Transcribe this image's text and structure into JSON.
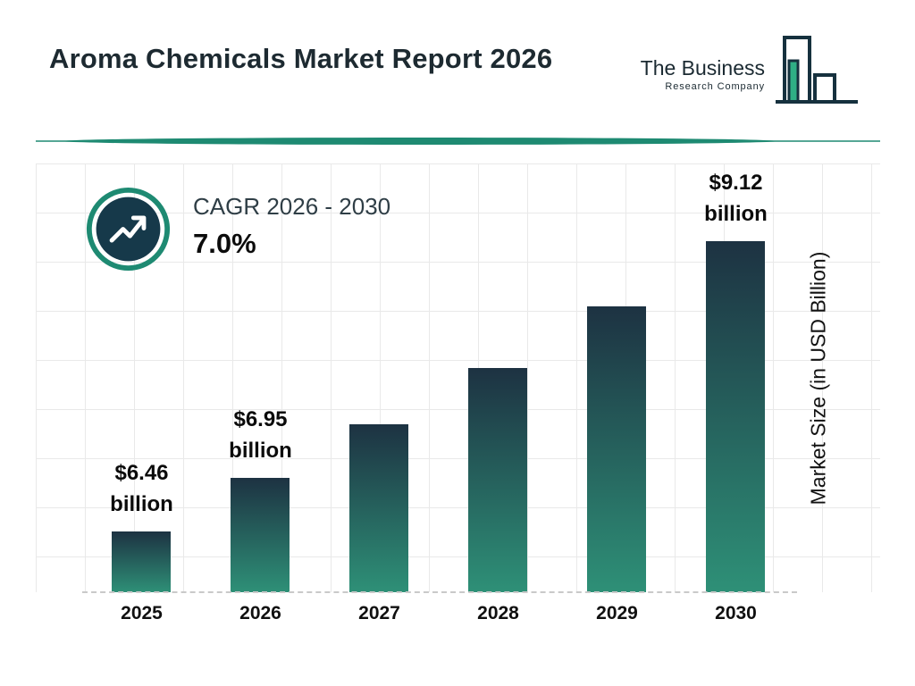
{
  "header": {
    "title": "Aroma Chemicals Market Report 2026"
  },
  "logo": {
    "line1": "The Business",
    "line2": "Research Company"
  },
  "cagr": {
    "label": "CAGR 2026 - 2030",
    "value": "7.0%"
  },
  "chart_data": {
    "type": "bar",
    "title": "Aroma Chemicals Market Report 2026",
    "categories": [
      "2025",
      "2026",
      "2027",
      "2028",
      "2029",
      "2030"
    ],
    "values": [
      6.46,
      6.95,
      7.44,
      7.96,
      8.52,
      9.12
    ],
    "labels": [
      "$6.46 billion",
      "$6.95 billion",
      "",
      "",
      "",
      "$9.12 billion"
    ],
    "xlabel": "",
    "ylabel": "Market Size (in USD Billion)",
    "ylim": [
      5.9,
      9.6
    ],
    "grid": true,
    "legend": "none",
    "cagr_percent": 7.0,
    "cagr_period": "2026 - 2030",
    "colors": {
      "navy": "#16313e",
      "teal": "#1e8a72",
      "bar_gradient_top": "#1d3242",
      "bar_gradient_bottom": "#2e9077"
    }
  }
}
